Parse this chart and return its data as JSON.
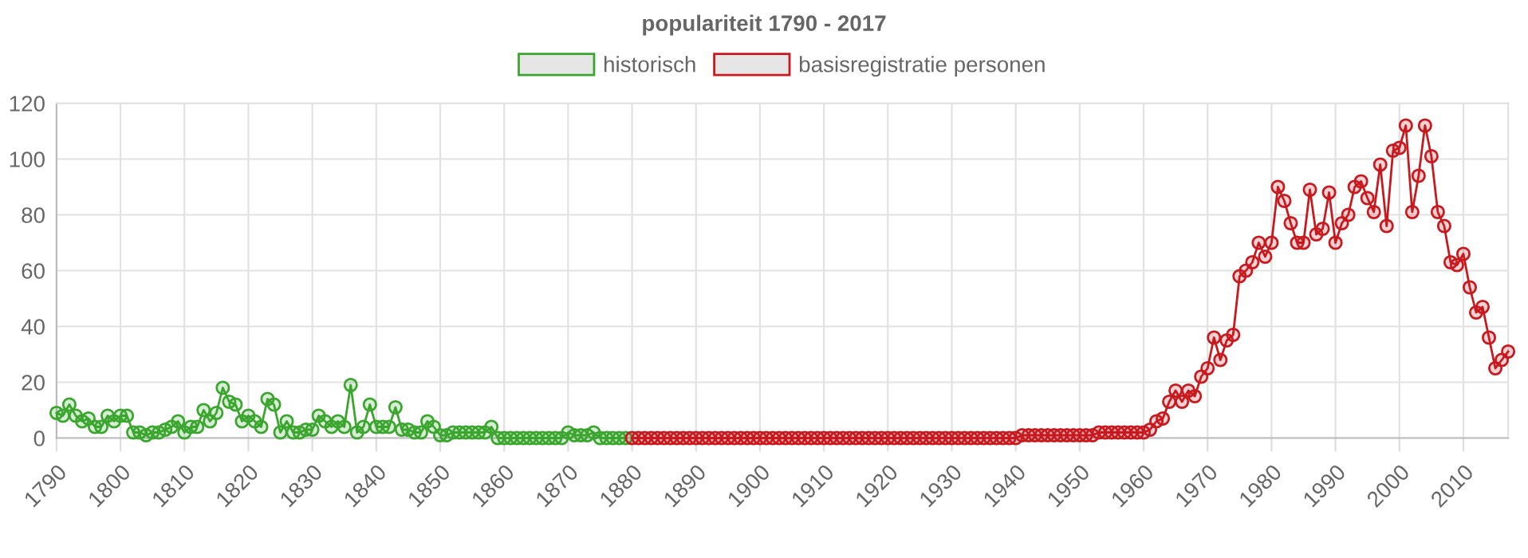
{
  "chart_data": {
    "type": "line",
    "title": "populariteit 1790 - 2017",
    "xlim": [
      1790,
      2017
    ],
    "xticks": [
      1790,
      1800,
      1810,
      1820,
      1830,
      1840,
      1850,
      1860,
      1870,
      1880,
      1890,
      1900,
      1910,
      1920,
      1930,
      1940,
      1950,
      1960,
      1970,
      1980,
      1990,
      2000,
      2010
    ],
    "ylim": [
      0,
      120
    ],
    "yticks": [
      0,
      20,
      40,
      60,
      80,
      100,
      120
    ],
    "grid": true,
    "legend": "top",
    "marker": "circle",
    "line_style": "solid",
    "series": [
      {
        "name": "historisch",
        "color": "#3aa62e",
        "x": [
          1790,
          1791,
          1792,
          1793,
          1794,
          1795,
          1796,
          1797,
          1798,
          1799,
          1800,
          1801,
          1802,
          1803,
          1804,
          1805,
          1806,
          1807,
          1808,
          1809,
          1810,
          1811,
          1812,
          1813,
          1814,
          1815,
          1816,
          1817,
          1818,
          1819,
          1820,
          1821,
          1822,
          1823,
          1824,
          1825,
          1826,
          1827,
          1828,
          1829,
          1830,
          1831,
          1832,
          1833,
          1834,
          1835,
          1836,
          1837,
          1838,
          1839,
          1840,
          1841,
          1842,
          1843,
          1844,
          1845,
          1846,
          1847,
          1848,
          1849,
          1850,
          1851,
          1852,
          1853,
          1854,
          1855,
          1856,
          1857,
          1858,
          1859,
          1860,
          1861,
          1862,
          1863,
          1864,
          1865,
          1866,
          1867,
          1868,
          1869,
          1870,
          1871,
          1872,
          1873,
          1874,
          1875,
          1876,
          1877,
          1878,
          1879
        ],
        "values": [
          9,
          8,
          12,
          8,
          6,
          7,
          4,
          4,
          8,
          6,
          8,
          8,
          2,
          2,
          1,
          2,
          2,
          3,
          4,
          6,
          2,
          4,
          4,
          10,
          6,
          9,
          18,
          13,
          12,
          6,
          8,
          6,
          4,
          14,
          12,
          2,
          6,
          2,
          2,
          3,
          3,
          8,
          6,
          4,
          6,
          4,
          19,
          2,
          4,
          12,
          4,
          4,
          4,
          11,
          3,
          3,
          2,
          2,
          6,
          4,
          1,
          1,
          2,
          2,
          2,
          2,
          2,
          2,
          4,
          0,
          0,
          0,
          0,
          0,
          0,
          0,
          0,
          0,
          0,
          0,
          2,
          1,
          1,
          1,
          2,
          0,
          0,
          0,
          0,
          0
        ]
      },
      {
        "name": "basisregistratie personen",
        "color": "#c8191f",
        "x": [
          1880,
          1881,
          1882,
          1883,
          1884,
          1885,
          1886,
          1887,
          1888,
          1889,
          1890,
          1891,
          1892,
          1893,
          1894,
          1895,
          1896,
          1897,
          1898,
          1899,
          1900,
          1901,
          1902,
          1903,
          1904,
          1905,
          1906,
          1907,
          1908,
          1909,
          1910,
          1911,
          1912,
          1913,
          1914,
          1915,
          1916,
          1917,
          1918,
          1919,
          1920,
          1921,
          1922,
          1923,
          1924,
          1925,
          1926,
          1927,
          1928,
          1929,
          1930,
          1931,
          1932,
          1933,
          1934,
          1935,
          1936,
          1937,
          1938,
          1939,
          1940,
          1941,
          1942,
          1943,
          1944,
          1945,
          1946,
          1947,
          1948,
          1949,
          1950,
          1951,
          1952,
          1953,
          1954,
          1955,
          1956,
          1957,
          1958,
          1959,
          1960,
          1961,
          1962,
          1963,
          1964,
          1965,
          1966,
          1967,
          1968,
          1969,
          1970,
          1971,
          1972,
          1973,
          1974,
          1975,
          1976,
          1977,
          1978,
          1979,
          1980,
          1981,
          1982,
          1983,
          1984,
          1985,
          1986,
          1987,
          1988,
          1989,
          1990,
          1991,
          1992,
          1993,
          1994,
          1995,
          1996,
          1997,
          1998,
          1999,
          2000,
          2001,
          2002,
          2003,
          2004,
          2005,
          2006,
          2007,
          2008,
          2009,
          2010,
          2011,
          2012,
          2013,
          2014,
          2015,
          2016,
          2017
        ],
        "values": [
          0,
          0,
          0,
          0,
          0,
          0,
          0,
          0,
          0,
          0,
          0,
          0,
          0,
          0,
          0,
          0,
          0,
          0,
          0,
          0,
          0,
          0,
          0,
          0,
          0,
          0,
          0,
          0,
          0,
          0,
          0,
          0,
          0,
          0,
          0,
          0,
          0,
          0,
          0,
          0,
          0,
          0,
          0,
          0,
          0,
          0,
          0,
          0,
          0,
          0,
          0,
          0,
          0,
          0,
          0,
          0,
          0,
          0,
          0,
          0,
          0,
          1,
          1,
          1,
          1,
          1,
          1,
          1,
          1,
          1,
          1,
          1,
          1,
          2,
          2,
          2,
          2,
          2,
          2,
          2,
          2,
          3,
          6,
          7,
          13,
          17,
          13,
          17,
          15,
          22,
          25,
          36,
          28,
          35,
          37,
          58,
          60,
          63,
          70,
          65,
          70,
          90,
          85,
          77,
          70,
          70,
          89,
          73,
          75,
          88,
          70,
          77,
          80,
          90,
          92,
          86,
          81,
          98,
          76,
          103,
          104,
          112,
          81,
          94,
          112,
          101,
          81,
          76,
          63,
          62,
          66,
          54,
          45,
          47,
          36,
          25,
          28,
          31
        ]
      }
    ]
  }
}
